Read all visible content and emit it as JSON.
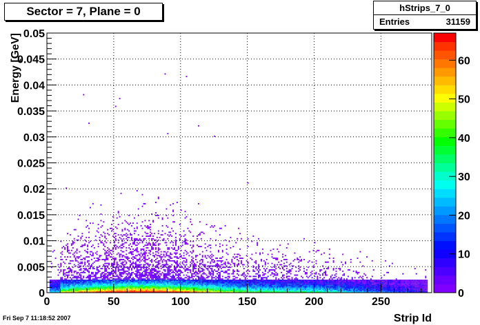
{
  "title": "Sector = 7, Plane = 0",
  "stats": {
    "name": "hStrips_7_0",
    "entries_label": "Entries",
    "entries_value": "31159"
  },
  "footer_date": "Fri Sep  7 11:18:52 2007",
  "chart_data": {
    "type": "heatmap",
    "title": "Sector = 7, Plane = 0",
    "xlabel": "Strip Id",
    "ylabel": "Energy [GeV]",
    "xlim": [
      0,
      288
    ],
    "ylim": [
      0,
      0.05
    ],
    "x_ticks": [
      0,
      50,
      100,
      150,
      200,
      250
    ],
    "x_tick_labels": [
      "0",
      "50",
      "100",
      "150",
      "200",
      "250"
    ],
    "y_ticks": [
      0,
      0.005,
      0.01,
      0.015,
      0.02,
      0.025,
      0.03,
      0.035,
      0.04,
      0.045,
      0.05
    ],
    "y_tick_labels": [
      "0",
      "0.005",
      "0.01",
      "0.015",
      "0.02",
      "0.025",
      "0.03",
      "0.035",
      "0.04",
      "0.045",
      "0.05"
    ],
    "z_range": [
      0,
      67
    ],
    "z_ticks": [
      0,
      10,
      20,
      30,
      40,
      50,
      60
    ],
    "z_tick_labels": [
      "0",
      "10",
      "20",
      "30",
      "40",
      "50",
      "60"
    ],
    "grid": true,
    "palette": [
      "#7f00ff",
      "#6a00ff",
      "#4b00ff",
      "#2f00ff",
      "#1000ff",
      "#0010ff",
      "#0033ff",
      "#0055ff",
      "#0077ff",
      "#0099ff",
      "#00bbff",
      "#00ddff",
      "#00ffee",
      "#00ffcc",
      "#00ff99",
      "#00ff66",
      "#00ff33",
      "#00ff00",
      "#33ff00",
      "#66ff00",
      "#99ff00",
      "#ccff00",
      "#ffff00",
      "#ffdd00",
      "#ffbb00",
      "#ff9900",
      "#ff7700",
      "#ff5500",
      "#ff3300",
      "#ff0000"
    ]
  }
}
